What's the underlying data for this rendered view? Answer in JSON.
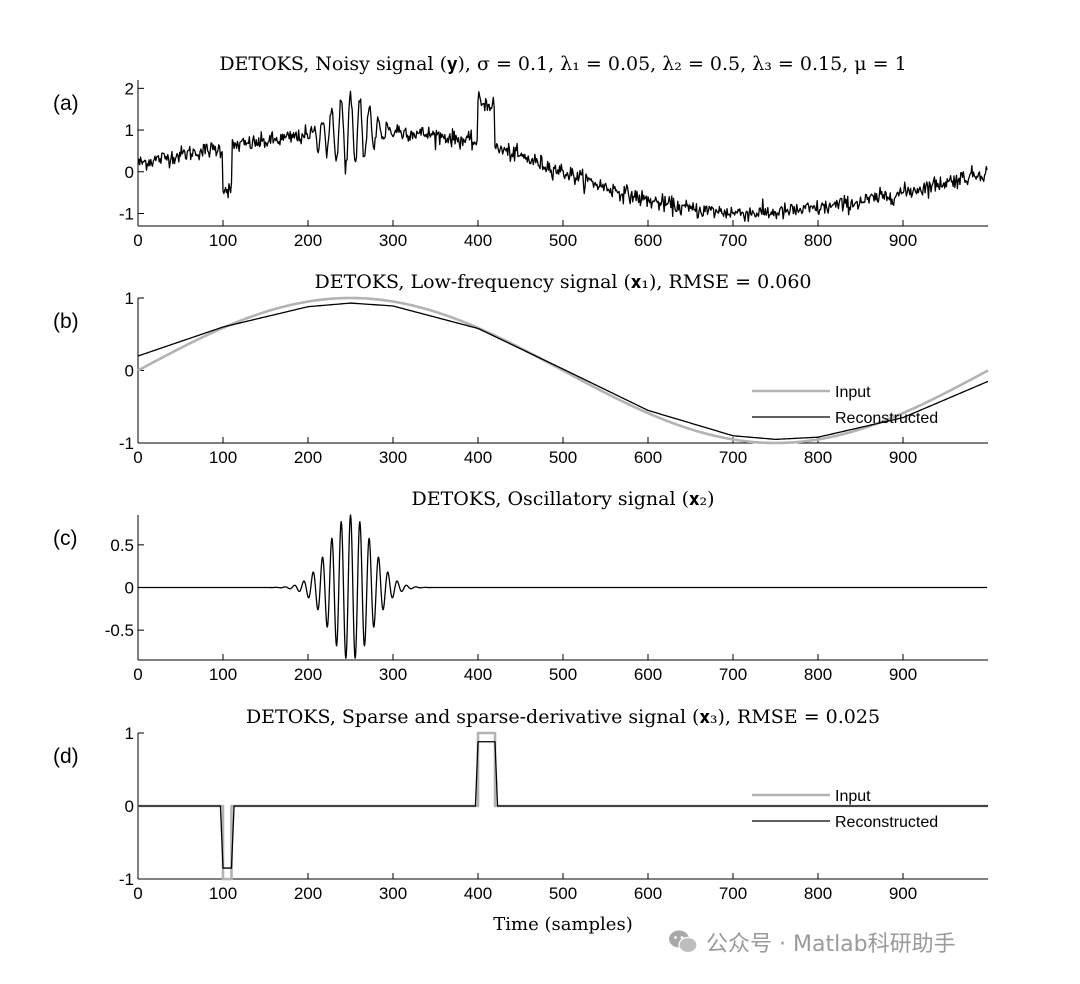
{
  "figure": {
    "xlabel": "Time (samples)",
    "watermark": "公众号 · Matlab科研助手",
    "colors": {
      "reconstructed": "#000000",
      "input": "#b3b3b3",
      "axis": "#000000"
    }
  },
  "chart_data": [
    {
      "panel": "(a)",
      "type": "line",
      "title": "DETOKS, Noisy signal (𝐲), σ = 0.1, λ₁ = 0.05, λ₂ = 0.5, λ₃ = 0.15, μ = 1",
      "xlim": [
        0,
        1000
      ],
      "ylim": [
        -1.3,
        2.2
      ],
      "xticks": [
        0,
        100,
        200,
        300,
        400,
        500,
        600,
        700,
        800,
        900
      ],
      "yticks": [
        -1,
        0,
        1,
        2
      ],
      "series": [
        {
          "role": "noisy",
          "x": [
            0,
            40,
            60,
            90,
            99,
            100,
            105,
            110,
            111,
            150,
            200,
            260,
            300,
            350,
            399,
            400,
            410,
            419,
            420,
            450,
            500,
            550,
            600,
            650,
            700,
            750,
            800,
            850,
            900,
            950,
            999
          ],
          "y": [
            0.2,
            0.37,
            0.45,
            0.54,
            0.54,
            -0.4,
            -0.42,
            -0.4,
            0.62,
            0.72,
            0.88,
            1.0,
            0.98,
            0.88,
            0.7,
            1.7,
            1.63,
            1.6,
            0.58,
            0.37,
            0.0,
            -0.37,
            -0.69,
            -0.9,
            -0.98,
            -0.98,
            -0.88,
            -0.72,
            -0.5,
            -0.25,
            0.0
          ],
          "noise_sigma": 0.1
        }
      ],
      "oscillation": {
        "center": 250,
        "width": 25,
        "amplitude": 0.85,
        "period": 11
      }
    },
    {
      "panel": "(b)",
      "type": "line",
      "title": "DETOKS, Low-frequency signal (𝐱₁), RMSE = 0.060",
      "xlim": [
        0,
        1000
      ],
      "ylim": [
        -1,
        1
      ],
      "xticks": [
        0,
        100,
        200,
        300,
        400,
        500,
        600,
        700,
        800,
        900
      ],
      "yticks": [
        -1,
        0,
        1
      ],
      "legend": [
        "Input",
        "Reconstructed"
      ],
      "legend_position": "right",
      "series": [
        {
          "name": "Input",
          "x": [
            0,
            100,
            200,
            250,
            300,
            400,
            500,
            600,
            700,
            750,
            800,
            900,
            1000
          ],
          "y": [
            0,
            0.59,
            0.95,
            1.0,
            0.95,
            0.59,
            0,
            -0.59,
            -0.95,
            -1.0,
            -0.95,
            -0.59,
            0
          ]
        },
        {
          "name": "Reconstructed",
          "x": [
            0,
            100,
            200,
            250,
            300,
            400,
            500,
            600,
            700,
            750,
            800,
            900,
            1000
          ],
          "y": [
            0.2,
            0.6,
            0.88,
            0.93,
            0.89,
            0.58,
            0.02,
            -0.55,
            -0.9,
            -0.95,
            -0.92,
            -0.65,
            -0.15
          ]
        }
      ]
    },
    {
      "panel": "(c)",
      "type": "line",
      "title": "DETOKS, Oscillatory signal (𝐱₂)",
      "xlim": [
        0,
        1000
      ],
      "ylim": [
        -0.85,
        0.85
      ],
      "xticks": [
        0,
        100,
        200,
        300,
        400,
        500,
        600,
        700,
        800,
        900
      ],
      "yticks": [
        -0.5,
        0,
        0.5
      ],
      "series": [
        {
          "name": "x2",
          "center": 250,
          "width": 25,
          "amplitude": 0.85,
          "period": 11
        }
      ]
    },
    {
      "panel": "(d)",
      "type": "line",
      "title": "DETOKS, Sparse and sparse-derivative signal (𝐱₃), RMSE = 0.025",
      "xlim": [
        0,
        1000
      ],
      "ylim": [
        -1,
        1
      ],
      "xticks": [
        0,
        100,
        200,
        300,
        400,
        500,
        600,
        700,
        800,
        900
      ],
      "yticks": [
        -1,
        0,
        1
      ],
      "legend": [
        "Input",
        "Reconstructed"
      ],
      "legend_position": "right",
      "series": [
        {
          "name": "Input",
          "x": [
            0,
            100,
            100,
            110,
            110,
            400,
            400,
            420,
            420,
            1000
          ],
          "y": [
            0,
            0,
            -1,
            -1,
            0,
            0,
            1,
            1,
            0,
            0
          ]
        },
        {
          "name": "Reconstructed",
          "x": [
            0,
            97,
            100,
            110,
            113,
            397,
            400,
            420,
            423,
            1000
          ],
          "y": [
            0,
            0,
            -0.85,
            -0.85,
            0,
            0,
            0.88,
            0.88,
            0,
            0
          ]
        }
      ]
    }
  ]
}
